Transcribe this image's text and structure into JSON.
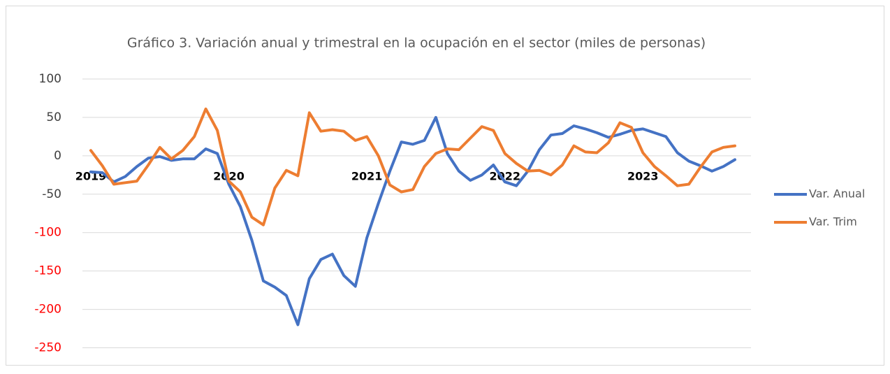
{
  "chart_data": {
    "type": "line",
    "title": "Gráfico 3. Variación anual y trimestral en la ocupación en el sector (miles de personas)",
    "categories": [
      "2019",
      null,
      null,
      null,
      null,
      null,
      null,
      null,
      null,
      null,
      null,
      null,
      "2020",
      null,
      null,
      null,
      null,
      null,
      null,
      null,
      null,
      null,
      null,
      null,
      "2021",
      null,
      null,
      null,
      null,
      null,
      null,
      null,
      null,
      null,
      null,
      null,
      "2022",
      null,
      null,
      null,
      null,
      null,
      null,
      null,
      null,
      null,
      null,
      null,
      "2023",
      null,
      null,
      null,
      null,
      null,
      null,
      null,
      null
    ],
    "series": [
      {
        "name": "Var. Anual",
        "color": "#4472c4",
        "values": [
          -21,
          -22,
          -34,
          -27,
          -14,
          -3,
          -1,
          -6,
          -4,
          -4,
          9,
          3,
          -37,
          -66,
          -110,
          -163,
          -171,
          -182,
          -220,
          -160,
          -135,
          -128,
          -156,
          -170,
          -107,
          -62,
          -20,
          18,
          15,
          20,
          50,
          3,
          -20,
          -32,
          -25,
          -12,
          -34,
          -39,
          -20,
          8,
          27,
          29,
          39,
          35,
          30,
          24,
          28,
          33,
          35,
          30,
          25,
          4,
          -7,
          -13,
          -20,
          -14,
          -5
        ]
      },
      {
        "name": "Var. Trim",
        "color": "#ed7d31",
        "values": [
          7,
          -13,
          -37,
          -35,
          -33,
          -12,
          11,
          -4,
          7,
          25,
          61,
          33,
          -33,
          -47,
          -80,
          -90,
          -42,
          -19,
          -26,
          56,
          32,
          34,
          32,
          20,
          25,
          0,
          -38,
          -47,
          -44,
          -14,
          3,
          9,
          8,
          23,
          38,
          33,
          3,
          -10,
          -20,
          -19,
          -25,
          -12,
          13,
          5,
          4,
          17,
          43,
          37,
          4,
          -14,
          -26,
          -39,
          -37,
          -15,
          5,
          11,
          13
        ]
      }
    ],
    "ylim": [
      -250,
      100
    ],
    "yticks": [
      -250,
      -200,
      -150,
      -100,
      -50,
      0,
      50,
      100
    ],
    "ytick_colors": [
      "#ff0000",
      "#ff0000",
      "#ff0000",
      "#ff0000",
      "#404040",
      "#404040",
      "#404040",
      "#404040"
    ],
    "grid": true,
    "legend": "right"
  }
}
